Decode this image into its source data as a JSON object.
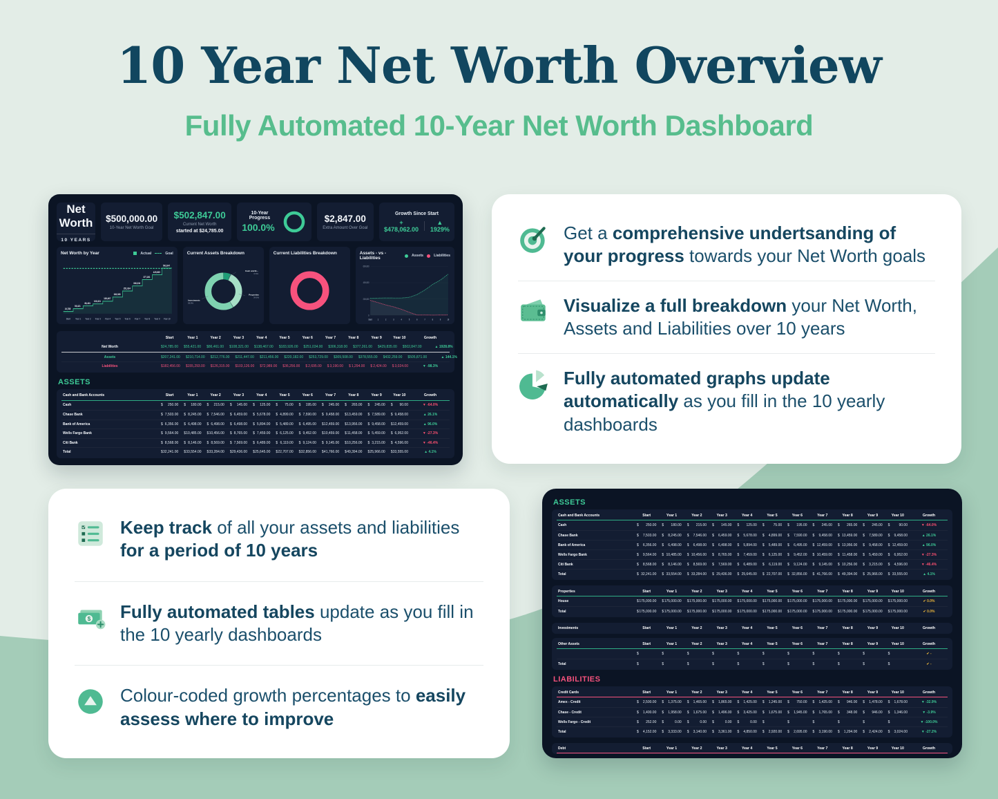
{
  "page": {
    "title": "10 Year Net Worth Overview",
    "subtitle": "Fully Automated 10-Year Net Worth Dashboard"
  },
  "colors": {
    "background": "#e3ede7",
    "background_accent": "#a4ccb8",
    "title": "#11465f",
    "subtitle_green": "#57bd8d",
    "dashboard_bg": "#0b1424",
    "panel_bg": "#131d32",
    "accent_green": "#3ecb97",
    "accent_pink": "#f7527d",
    "accent_yellow": "#e7b33c",
    "negative_red": "#fb5070"
  },
  "dash1": {
    "kpis": {
      "net_worth_label": "Net Worth",
      "years_label": "10 YEARS",
      "goal_value": "$500,000.00",
      "goal_label": "10-Year Net Worth Goal",
      "current_value": "$502,847.00",
      "current_label": "Current Net Worth",
      "started_label": "started at $24,785.00",
      "progress_label": "10-Year Progress",
      "progress_value": "100.0%",
      "extra_value": "$2,847.00",
      "extra_label": "Extra Amount Over Goal",
      "growth_title": "Growth Since Start",
      "growth_amount": "+  $478,062.00",
      "growth_pct": "▲  1929%"
    },
    "assets_title": "ASSETS"
  },
  "dash2": {
    "assets_title": "ASSETS",
    "liabilities_title": "LIABILITIES"
  },
  "tables": {
    "cols": [
      "Start",
      "Year 1",
      "Year 2",
      "Year 3",
      "Year 4",
      "Year 5",
      "Year 6",
      "Year 7",
      "Year 8",
      "Year 9",
      "Year 10",
      "Growth"
    ],
    "net_worth": {
      "label_header": "",
      "accent": "none",
      "rows": [
        {
          "label": "Net Worth",
          "label_color": "c-white",
          "value_color": "c-green",
          "underline": true,
          "values": [
            "24,785.00",
            "55,421.00",
            "86,461.00",
            "108,321.00",
            "138,467.00",
            "183,926.00",
            "251,034.00",
            "306,318.00",
            "377,261.00",
            "429,835.00",
            "502,847.00"
          ],
          "growth": {
            "icon": "▲",
            "text": "1928.8%",
            "color": "green"
          }
        },
        {
          "label": "Assets",
          "label_color": "c-green",
          "value_color": "c-green",
          "values": [
            "207,241.00",
            "210,714.00",
            "212,776.00",
            "211,447.00",
            "211,456.00",
            "220,182.00",
            "253,729.00",
            "309,508.00",
            "378,555.00",
            "432,259.00",
            "505,871.00"
          ],
          "growth": {
            "icon": "▲",
            "text": "144.1%",
            "color": "green"
          }
        },
        {
          "label": "Liabilities",
          "label_color": "c-pink",
          "value_color": "c-pink",
          "values": [
            "182,456.00",
            "155,293.00",
            "126,315.00",
            "103,126.00",
            "72,989.00",
            "36,256.00",
            "2,695.00",
            "3,190.00",
            "1,294.00",
            "2,424.00",
            "3,024.00"
          ],
          "growth": {
            "icon": "▼",
            "text": "-98.3%",
            "color": "green"
          }
        }
      ]
    },
    "cash": {
      "label_header": "Cash and Bank Accounts",
      "accent": "green",
      "rows": [
        {
          "label": "Cash",
          "values": [
            "250.00",
            "180.00",
            "215.00",
            "145.00",
            "125.00",
            "75.00",
            "195.00",
            "245.00",
            "265.00",
            "245.00",
            "90.00"
          ],
          "growth": {
            "icon": "▼",
            "text": "-64.0%",
            "color": "red"
          }
        },
        {
          "label": "Chase Bank",
          "values": [
            "7,503.00",
            "8,245.00",
            "7,546.00",
            "6,459.00",
            "5,678.00",
            "4,899.00",
            "7,590.00",
            "9,458.00",
            "13,459.00",
            "7,589.00",
            "9,458.00"
          ],
          "growth": {
            "icon": "▲",
            "text": "26.1%",
            "color": "green"
          }
        },
        {
          "label": "Bank of America",
          "values": [
            "6,356.00",
            "6,498.00",
            "6,498.00",
            "6,498.00",
            "5,894.00",
            "5,489.00",
            "6,495.00",
            "12,459.00",
            "13,956.00",
            "9,458.00",
            "12,459.00"
          ],
          "growth": {
            "icon": "▲",
            "text": "96.0%",
            "color": "green"
          }
        },
        {
          "label": "Wells Fargo Bank",
          "values": [
            "9,564.00",
            "10,485.00",
            "10,456.00",
            "8,765.00",
            "7,459.00",
            "6,125.00",
            "9,452.00",
            "10,459.00",
            "11,458.00",
            "5,459.00",
            "6,952.00"
          ],
          "growth": {
            "icon": "▼",
            "text": "-27.3%",
            "color": "red"
          }
        },
        {
          "label": "Citi Bank",
          "values": [
            "8,568.00",
            "8,146.00",
            "8,569.00",
            "7,569.00",
            "6,489.00",
            "6,119.00",
            "9,124.00",
            "9,145.00",
            "10,256.00",
            "3,215.00",
            "4,596.00"
          ],
          "growth": {
            "icon": "▼",
            "text": "-46.4%",
            "color": "red"
          }
        },
        {
          "label": "Total",
          "values": [
            "32,241.00",
            "33,554.00",
            "33,284.00",
            "29,436.00",
            "25,645.00",
            "22,707.00",
            "32,856.00",
            "41,766.00",
            "49,394.00",
            "25,966.00",
            "33,555.00"
          ],
          "growth": {
            "icon": "▲",
            "text": "4.1%",
            "color": "green"
          }
        }
      ]
    },
    "properties": {
      "label_header": "Properties",
      "accent": "green",
      "rows": [
        {
          "label": "House",
          "values": [
            "175,000.00",
            "175,000.00",
            "175,000.00",
            "175,000.00",
            "175,000.00",
            "175,000.00",
            "175,000.00",
            "175,000.00",
            "175,000.00",
            "175,000.00",
            "175,000.00"
          ],
          "growth": {
            "icon": "✔",
            "text": "0.0%",
            "color": "yellow"
          }
        },
        {
          "label": "Total",
          "values": [
            "175,000.00",
            "175,000.00",
            "175,000.00",
            "175,000.00",
            "175,000.00",
            "175,000.00",
            "175,000.00",
            "175,000.00",
            "175,000.00",
            "175,000.00",
            "175,000.00"
          ],
          "growth": {
            "icon": "✔",
            "text": "0.0%",
            "color": "yellow"
          }
        }
      ]
    },
    "investments": {
      "label_header": "Investments",
      "accent": "none",
      "rows": []
    },
    "other_assets": {
      "label_header": "Other Assets",
      "accent": "green",
      "rows": [
        {
          "label": "",
          "values": [
            "",
            "",
            "",
            "",
            "",
            "",
            "",
            "",
            "",
            "",
            ""
          ],
          "growth": {
            "icon": "✔",
            "text": "-",
            "color": "yellow"
          }
        },
        {
          "label": "Total",
          "values": [
            "",
            "",
            "",
            "",
            "",
            "",
            "",
            "",
            "",
            "",
            ""
          ],
          "growth": {
            "icon": "✔",
            "text": "-",
            "color": "yellow"
          }
        }
      ]
    },
    "credit_cards": {
      "label_header": "Credit Cards",
      "accent": "pink",
      "rows": [
        {
          "label": "Amex - Credit",
          "values": [
            "2,500.00",
            "1,375.00",
            "1,465.00",
            "1,865.00",
            "1,425.00",
            "1,245.00",
            "750.00",
            "1,425.00",
            "946.00",
            "1,478.00",
            "1,678.00"
          ],
          "growth": {
            "icon": "▼",
            "text": "-32.9%",
            "color": "green"
          }
        },
        {
          "label": "Chase - Credit",
          "values": [
            "1,400.00",
            "1,958.00",
            "1,675.00",
            "1,496.00",
            "3,425.00",
            "1,675.00",
            "1,945.00",
            "1,765.00",
            "348.00",
            "946.00",
            "1,346.00"
          ],
          "growth": {
            "icon": "▼",
            "text": "-3.9%",
            "color": "green"
          }
        },
        {
          "label": "Wells Fargo - Credit",
          "values": [
            "252.00",
            "0.00",
            "0.00",
            "0.00",
            "0.00",
            "",
            "",
            "",
            "",
            "",
            ""
          ],
          "growth": {
            "icon": "▼",
            "text": "-100.0%",
            "color": "green"
          }
        },
        {
          "label": "Total",
          "values": [
            "4,152.00",
            "3,333.00",
            "3,140.00",
            "3,361.00",
            "4,850.00",
            "2,920.00",
            "2,695.00",
            "3,190.00",
            "1,294.00",
            "2,424.00",
            "3,024.00"
          ],
          "growth": {
            "icon": "▼",
            "text": "-27.2%",
            "color": "green"
          }
        }
      ]
    },
    "debt": {
      "label_header": "Debt",
      "accent": "pink",
      "rows": []
    }
  },
  "features_right": {
    "items": [
      {
        "icon": "target-icon",
        "segments": [
          {
            "text": "Get a ",
            "bold": false
          },
          {
            "text": "comprehensive undertsanding of your progress",
            "bold": true
          },
          {
            "text": " towards your Net Worth goals",
            "bold": false
          }
        ]
      },
      {
        "icon": "wallet-icon",
        "segments": [
          {
            "text": "Visualize a full breakdown",
            "bold": true
          },
          {
            "text": " your Net Worth, Assets and Liabilities over 10 years",
            "bold": false
          }
        ]
      },
      {
        "icon": "pie-chart-icon",
        "segments": [
          {
            "text": "Fully automated graphs update automatically",
            "bold": true
          },
          {
            "text": " as you fill in the 10 yearly dashboards",
            "bold": false
          }
        ]
      }
    ]
  },
  "features_left": {
    "items": [
      {
        "icon": "checklist-icon",
        "segments": [
          {
            "text": "Keep track",
            "bold": true
          },
          {
            "text": " of all your assets and liabilities ",
            "bold": false
          },
          {
            "text": "for a period of 10 years",
            "bold": true
          }
        ]
      },
      {
        "icon": "money-icon",
        "segments": [
          {
            "text": "Fully automated tables",
            "bold": true
          },
          {
            "text": " update as you fill in the 10 yearly dashboards",
            "bold": false
          }
        ]
      },
      {
        "icon": "growth-arrow-icon",
        "segments": [
          {
            "text": "Colour-coded growth percentages to ",
            "bold": false
          },
          {
            "text": "easily assess where to improve",
            "bold": true
          }
        ]
      }
    ]
  },
  "chart_data": [
    {
      "id": "net_worth_by_year",
      "type": "line",
      "title": "Net Worth by Year",
      "legend": [
        "Actual",
        "Goal"
      ],
      "categories": [
        "Start",
        "Year 1",
        "Year 2",
        "Year 3",
        "Year 4",
        "Year 5",
        "Year 6",
        "Year 7",
        "Year 8",
        "Year 9",
        "Year 10"
      ],
      "series": [
        {
          "name": "Actual",
          "values": [
            24785,
            55421,
            86461,
            108321,
            138467,
            183926,
            251034,
            306318,
            377261,
            429835,
            502847
          ]
        },
        {
          "name": "Goal",
          "values": [
            500000,
            500000,
            500000,
            500000,
            500000,
            500000,
            500000,
            500000,
            500000,
            500000,
            500000
          ]
        }
      ],
      "point_labels": [
        "24,785",
        "55,421",
        "86,461",
        "108,321",
        "138,467",
        "183,926",
        "251,034",
        "306,318",
        "377,261",
        "429,835",
        "502,847"
      ],
      "ylim": [
        0,
        560000
      ],
      "grid": false,
      "legend_position": "top-right"
    },
    {
      "id": "current_assets_breakdown",
      "type": "pie",
      "title": "Current Assets Breakdown",
      "slices": [
        {
          "label": "Investments",
          "pct_label": "58.8%",
          "value": 58.8,
          "color": "#7fd2b0"
        },
        {
          "label": "Properties",
          "pct_label": "34.6%",
          "value": 34.6,
          "color": "#a6dfc6"
        },
        {
          "label": "Cash and B...",
          "pct_label": "6.6%",
          "value": 6.6,
          "color": "#1f9e77"
        }
      ]
    },
    {
      "id": "current_liabilities_breakdown",
      "type": "pie",
      "title": "Current Liabilities Breakdown",
      "slices": [
        {
          "label": "Credit Cards",
          "pct_label": "100%",
          "value": 100,
          "color": "#f7527d"
        }
      ]
    },
    {
      "id": "assets_vs_liabilities",
      "type": "line",
      "title": "Assets - vs - Liabilities",
      "legend": [
        "Assets",
        "Liabilities"
      ],
      "x": [
        "Start",
        "1",
        "2",
        "3",
        "4",
        "5",
        "6",
        "7",
        "8",
        "9",
        "10"
      ],
      "yticks": [
        "600,000",
        "400,000",
        "200,000",
        "0"
      ],
      "ylim": [
        0,
        600000
      ],
      "series": [
        {
          "name": "Assets",
          "values": [
            207241,
            210714,
            212776,
            211447,
            211456,
            220182,
            253729,
            309508,
            378555,
            432259,
            505871
          ]
        },
        {
          "name": "Liabilities",
          "values": [
            182456,
            155293,
            126315,
            103126,
            72989,
            36256,
            2695,
            3190,
            1294,
            2424,
            3024
          ]
        }
      ],
      "legend_position": "top-right"
    }
  ]
}
